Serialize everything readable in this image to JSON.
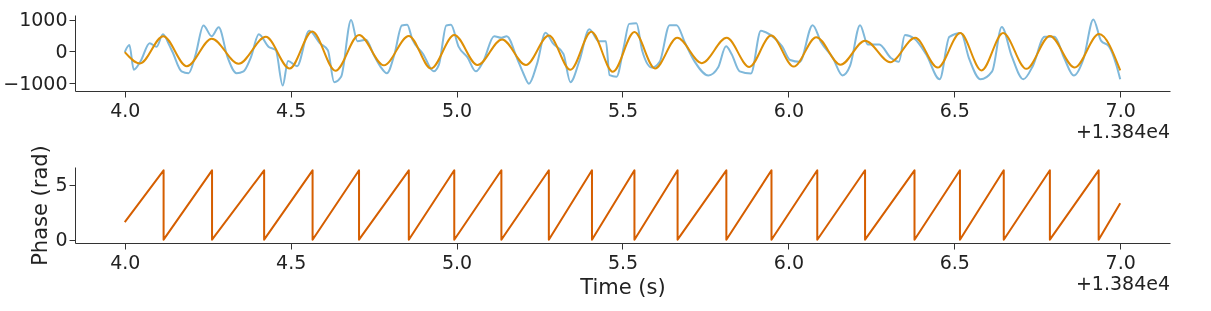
{
  "chart_data": [
    {
      "type": "line",
      "xlim": [
        3.85,
        7.15
      ],
      "ylim": [
        -1250,
        1150
      ],
      "xticks": [
        {
          "value": 4,
          "label": "4.0"
        },
        4.5,
        {
          "value": 5,
          "label": "5.0"
        },
        5.5,
        {
          "value": 6,
          "label": "6.0"
        },
        6.5,
        {
          "value": 7,
          "label": "7.0"
        }
      ],
      "yticks": [
        {
          "value": -1000,
          "label": "−1000"
        },
        0,
        1000
      ],
      "grid": false,
      "marker": "none",
      "line_style": "solid",
      "annotations": [
        "+1.384e4"
      ],
      "series": [
        {
          "color": "#7fb8da",
          "x": [
            4.0,
            4.014,
            4.027,
            4.048,
            4.075,
            4.096,
            4.115,
            4.134,
            4.144,
            4.171,
            4.192,
            4.214,
            4.237,
            4.262,
            4.283,
            4.31,
            4.337,
            4.358,
            4.38,
            4.404,
            4.433,
            4.455,
            4.476,
            4.492,
            4.519,
            4.556,
            4.588,
            4.612,
            4.631,
            4.652,
            4.682,
            4.701,
            4.727,
            4.749,
            4.77,
            4.79,
            4.813,
            4.835,
            4.851,
            4.867,
            4.899,
            4.931,
            4.947,
            4.969,
            4.983,
            5.006,
            5.033,
            5.058,
            5.081,
            5.113,
            5.135,
            5.151,
            5.183,
            5.201,
            5.218,
            5.242,
            5.268,
            5.29,
            5.322,
            5.343,
            5.37,
            5.4,
            5.429,
            5.45,
            5.461,
            5.482,
            5.504,
            5.52,
            5.542,
            5.559,
            5.589,
            5.612,
            5.642,
            5.663,
            5.688,
            5.718,
            5.759,
            5.788,
            5.812,
            5.829,
            5.853,
            5.887,
            5.917,
            5.946,
            5.981,
            6.005,
            6.034,
            6.073,
            6.099,
            6.134,
            6.163,
            6.186,
            6.216,
            6.239,
            6.274,
            6.309,
            6.333,
            6.351,
            6.38,
            6.415,
            6.456,
            6.485,
            6.52,
            6.544,
            6.579,
            6.614,
            6.643,
            6.673,
            6.708,
            6.737,
            6.772,
            6.802,
            6.831,
            6.86,
            6.89,
            6.919,
            6.942,
            6.966,
            6.989,
            7.0
          ],
          "values": [
            -20,
            200,
            -580,
            -300,
            260,
            150,
            540,
            200,
            -20,
            -630,
            -690,
            -80,
            820,
            480,
            760,
            -190,
            -690,
            -630,
            -190,
            540,
            150,
            40,
            -1080,
            -300,
            -470,
            650,
            260,
            40,
            -970,
            -800,
            990,
            320,
            370,
            -80,
            -470,
            -690,
            -80,
            820,
            840,
            370,
            -80,
            -630,
            -410,
            820,
            840,
            150,
            -190,
            -630,
            -300,
            480,
            430,
            480,
            -240,
            -690,
            -1020,
            -410,
            590,
            260,
            -80,
            -970,
            -300,
            700,
            320,
            320,
            -750,
            -800,
            150,
            870,
            890,
            40,
            -510,
            -330,
            830,
            830,
            280,
            -330,
            -760,
            -510,
            160,
            -90,
            -630,
            -700,
            650,
            520,
            160,
            -270,
            -330,
            830,
            280,
            -210,
            -760,
            -450,
            830,
            220,
            220,
            -210,
            -330,
            520,
            400,
            -90,
            -880,
            460,
            580,
            -210,
            -880,
            -630,
            770,
            -150,
            -880,
            -450,
            460,
            460,
            -210,
            -760,
            -210,
            1010,
            340,
            160,
            -450,
            -880
          ]
        },
        {
          "color": "#de8f05",
          "x": [
            4.0,
            4.046,
            4.116,
            4.187,
            4.262,
            4.343,
            4.425,
            4.497,
            4.565,
            4.635,
            4.706,
            4.781,
            4.856,
            4.923,
            4.993,
            5.063,
            5.137,
            5.209,
            5.278,
            5.343,
            5.406,
            5.471,
            5.536,
            5.598,
            5.665,
            5.739,
            5.814,
            5.882,
            5.948,
            6.016,
            6.084,
            6.157,
            6.231,
            6.307,
            6.382,
            6.45,
            6.518,
            6.582,
            6.647,
            6.717,
            6.788,
            6.863,
            6.936,
            7.0
          ],
          "values": [
            -20,
            -380,
            480,
            -470,
            400,
            -390,
            460,
            -540,
            630,
            -610,
            520,
            -440,
            490,
            -540,
            520,
            -430,
            380,
            -430,
            500,
            -580,
            620,
            -640,
            610,
            -540,
            430,
            -370,
            430,
            -490,
            500,
            -480,
            450,
            -420,
            340,
            -340,
            430,
            -510,
            580,
            -600,
            580,
            -550,
            490,
            -510,
            550,
            -600
          ]
        }
      ]
    },
    {
      "type": "line",
      "xlim": [
        3.85,
        7.15
      ],
      "ylim": [
        -0.3,
        6.6
      ],
      "xticks": [
        {
          "value": 4,
          "label": "4.0"
        },
        4.5,
        {
          "value": 5,
          "label": "5.0"
        },
        5.5,
        {
          "value": 6,
          "label": "6.0"
        },
        6.5,
        {
          "value": 7,
          "label": "7.0"
        }
      ],
      "yticks": [
        0,
        5
      ],
      "xlabel": "Time (s)",
      "ylabel": "Phase (rad)",
      "grid": false,
      "marker": "none",
      "line_style": "solid",
      "annotations": [
        "+1.384e4"
      ],
      "series": [
        {
          "color": "#d55e00",
          "x": [
            4.0,
            4.117,
            4.117,
            4.263,
            4.263,
            4.42,
            4.42,
            4.566,
            4.566,
            4.706,
            4.706,
            4.856,
            4.856,
            4.993,
            4.993,
            5.135,
            5.135,
            5.278,
            5.278,
            5.408,
            5.408,
            5.536,
            5.536,
            5.666,
            5.666,
            5.813,
            5.813,
            5.949,
            5.949,
            6.087,
            6.087,
            6.231,
            6.231,
            6.38,
            6.38,
            6.517,
            6.517,
            6.649,
            6.649,
            6.788,
            6.788,
            6.935,
            6.935,
            7.0
          ],
          "values": [
            1.6,
            6.3,
            0,
            6.3,
            0,
            6.3,
            0,
            6.3,
            0,
            6.3,
            0,
            6.3,
            0,
            6.3,
            0,
            6.3,
            0,
            6.3,
            0,
            6.3,
            0,
            6.3,
            0,
            6.3,
            0,
            6.3,
            0,
            6.3,
            0,
            6.3,
            0,
            6.3,
            0,
            6.3,
            0,
            6.3,
            0,
            6.3,
            0,
            6.3,
            0,
            6.3,
            0,
            3.3
          ]
        }
      ]
    }
  ]
}
